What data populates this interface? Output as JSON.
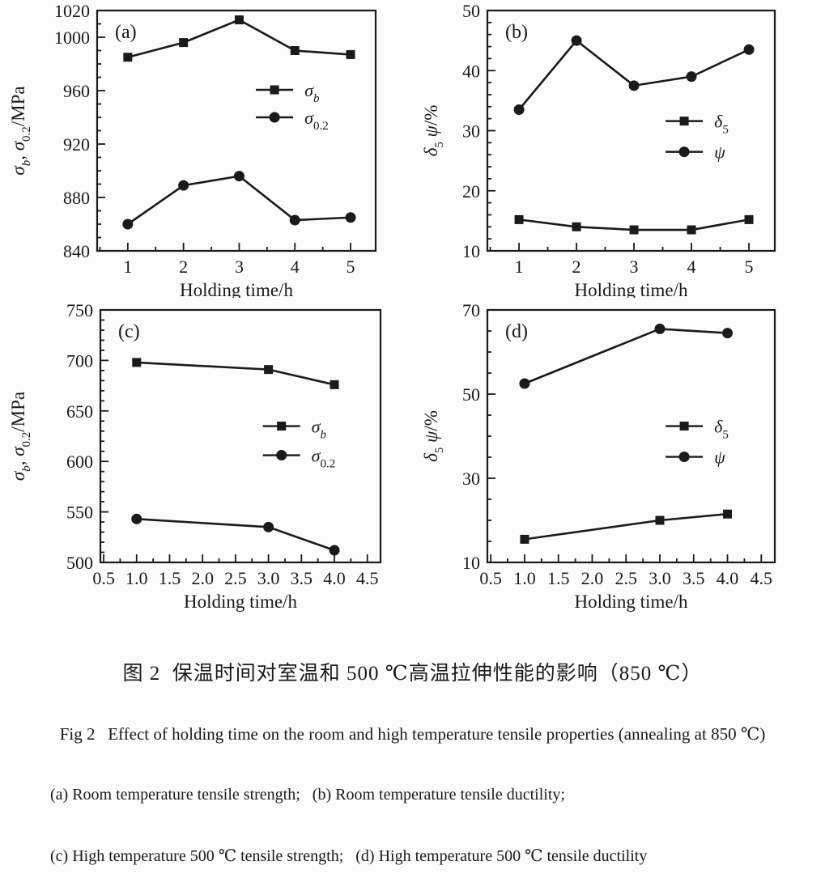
{
  "style": {
    "ink": "#1a1a1a",
    "background": "#fcfcfb"
  },
  "figure": {
    "caption_zh": "图 2  保温时间对室温和 500 ℃高温拉伸性能的影响（850 ℃）",
    "caption_en": "Fig 2   Effect of holding time on the room and high temperature tensile properties (annealing at 850 ℃)",
    "subcaption_ab": "(a) Room temperature tensile strength;   (b) Room temperature tensile ductility;",
    "subcaption_cd": "(c) High temperature 500 ℃ tensile strength;   (d) High temperature 500 ℃ tensile ductility"
  },
  "chart_data": [
    {
      "id": "a",
      "type": "line",
      "panel_label": "(a)",
      "xlabel": "Holding time/h",
      "ylabel": "σb, σ0.2/MPa",
      "ylabel_segments": [
        {
          "t": "σ",
          "i": 1
        },
        {
          "t": "b",
          "i": 1,
          "sub": 1
        },
        {
          "t": ", "
        },
        {
          "t": "σ",
          "i": 1
        },
        {
          "t": "0.2",
          "sub": 1
        },
        {
          "t": "/MPa"
        }
      ],
      "x": [
        1,
        2,
        3,
        4,
        5
      ],
      "xlim": [
        0.45,
        5.45
      ],
      "xticks": [
        1,
        2,
        3,
        4,
        5
      ],
      "xtick_labels": [
        "1",
        "2",
        "3",
        "4",
        "5"
      ],
      "x_minor_step": 0.5,
      "ylim": [
        840,
        1020
      ],
      "yticks": [
        840,
        880,
        920,
        960,
        1000,
        1020
      ],
      "ytick_labels": [
        "840",
        "880",
        "920",
        "960",
        "1000",
        "1020"
      ],
      "y_minor_step": 10,
      "grid": false,
      "legend_position": "middle-right",
      "legend": {
        "fx": 0.57,
        "fy": 0.33,
        "row_gap": 34
      },
      "series": [
        {
          "name": "σb",
          "label_segments": [
            {
              "t": "σ",
              "i": 1
            },
            {
              "t": "b",
              "i": 1,
              "sub": 1
            }
          ],
          "marker": "square",
          "values": [
            985,
            996,
            1013,
            990,
            987
          ]
        },
        {
          "name": "σ0.2",
          "label_segments": [
            {
              "t": "σ",
              "i": 1
            },
            {
              "t": "0.2",
              "sub": 1
            }
          ],
          "marker": "circle",
          "values": [
            860,
            889,
            896,
            863,
            865
          ]
        }
      ]
    },
    {
      "id": "b",
      "type": "line",
      "panel_label": "(b)",
      "xlabel": "Holding time/h",
      "ylabel": "δ5 ψ/%",
      "ylabel_segments": [
        {
          "t": "δ",
          "i": 1
        },
        {
          "t": "5",
          "sub": 1
        },
        {
          "t": " "
        },
        {
          "t": "ψ",
          "i": 1
        },
        {
          "t": "/%"
        }
      ],
      "x": [
        1,
        2,
        3,
        4,
        5
      ],
      "xlim": [
        0.45,
        5.45
      ],
      "xticks": [
        1,
        2,
        3,
        4,
        5
      ],
      "xtick_labels": [
        "1",
        "2",
        "3",
        "4",
        "5"
      ],
      "x_minor_step": 0.5,
      "ylim": [
        10,
        50
      ],
      "yticks": [
        10,
        20,
        30,
        40,
        50
      ],
      "ytick_labels": [
        "10",
        "20",
        "30",
        "40",
        "50"
      ],
      "y_minor_step": 2,
      "grid": false,
      "legend_position": "middle-right",
      "legend": {
        "fx": 0.62,
        "fy": 0.46,
        "row_gap": 38
      },
      "series": [
        {
          "name": "δ5",
          "label_segments": [
            {
              "t": "δ",
              "i": 1
            },
            {
              "t": "5",
              "sub": 1
            }
          ],
          "marker": "square",
          "values": [
            15.2,
            14,
            13.5,
            13.5,
            15.2
          ]
        },
        {
          "name": "ψ",
          "label_segments": [
            {
              "t": "ψ",
              "i": 1
            }
          ],
          "marker": "circle",
          "values": [
            33.5,
            45,
            37.5,
            39,
            43.5
          ]
        }
      ]
    },
    {
      "id": "c",
      "type": "line",
      "panel_label": "(c)",
      "xlabel": "Holding time/h",
      "ylabel": "σb, σ0.2/MPa",
      "ylabel_segments": [
        {
          "t": "σ",
          "i": 1
        },
        {
          "t": "b",
          "i": 1,
          "sub": 1
        },
        {
          "t": ", "
        },
        {
          "t": "σ",
          "i": 1
        },
        {
          "t": "0.2",
          "sub": 1
        },
        {
          "t": "/MPa"
        }
      ],
      "x": [
        1.0,
        3.0,
        4.0
      ],
      "xlim": [
        0.45,
        4.7
      ],
      "xticks": [
        0.5,
        1.0,
        1.5,
        2.0,
        2.5,
        3.0,
        3.5,
        4.0,
        4.5
      ],
      "xtick_labels": [
        "0.5",
        "1.0",
        "1.5",
        "2.0",
        "2.5",
        "3.0",
        "3.5",
        "4.0",
        "4.5"
      ],
      "x_minor_step": 0.25,
      "ylim": [
        500,
        750
      ],
      "yticks": [
        500,
        550,
        600,
        650,
        700,
        750
      ],
      "ytick_labels": [
        "500",
        "550",
        "600",
        "650",
        "700",
        "750"
      ],
      "y_minor_step": 10,
      "grid": false,
      "legend_position": "middle-right",
      "legend": {
        "fx": 0.58,
        "fy": 0.46,
        "row_gap": 36
      },
      "series": [
        {
          "name": "σb",
          "label_segments": [
            {
              "t": "σ",
              "i": 1
            },
            {
              "t": "b",
              "i": 1,
              "sub": 1
            }
          ],
          "marker": "square",
          "values": [
            698,
            691,
            676
          ]
        },
        {
          "name": "σ0.2",
          "label_segments": [
            {
              "t": "σ",
              "i": 1
            },
            {
              "t": "0.2",
              "sub": 1
            }
          ],
          "marker": "circle",
          "values": [
            543,
            535,
            512
          ]
        }
      ]
    },
    {
      "id": "d",
      "type": "line",
      "panel_label": "(d)",
      "xlabel": "Holding time/h",
      "ylabel": "δ5 ψ/%",
      "ylabel_segments": [
        {
          "t": "δ",
          "i": 1
        },
        {
          "t": "5",
          "sub": 1
        },
        {
          "t": " "
        },
        {
          "t": "ψ",
          "i": 1
        },
        {
          "t": "/%"
        }
      ],
      "x": [
        1.0,
        3.0,
        4.0
      ],
      "xlim": [
        0.45,
        4.7
      ],
      "xticks": [
        0.5,
        1.0,
        1.5,
        2.0,
        2.5,
        3.0,
        3.5,
        4.0,
        4.5
      ],
      "xtick_labels": [
        "0.5",
        "1.0",
        "1.5",
        "2.0",
        "2.5",
        "3.0",
        "3.5",
        "4.0",
        "4.5"
      ],
      "x_minor_step": 0.25,
      "ylim": [
        10,
        70
      ],
      "yticks": [
        10,
        30,
        50,
        70
      ],
      "ytick_labels": [
        "10",
        "30",
        "50",
        "70"
      ],
      "y_minor_step": 5,
      "grid": false,
      "legend_position": "middle-right",
      "legend": {
        "fx": 0.62,
        "fy": 0.46,
        "row_gap": 38
      },
      "series": [
        {
          "name": "δ5",
          "label_segments": [
            {
              "t": "δ",
              "i": 1
            },
            {
              "t": "5",
              "sub": 1
            }
          ],
          "marker": "square",
          "values": [
            15.5,
            20,
            21.5
          ]
        },
        {
          "name": "ψ",
          "label_segments": [
            {
              "t": "ψ",
              "i": 1
            }
          ],
          "marker": "circle",
          "values": [
            52.5,
            65.5,
            64.5
          ]
        }
      ]
    }
  ]
}
